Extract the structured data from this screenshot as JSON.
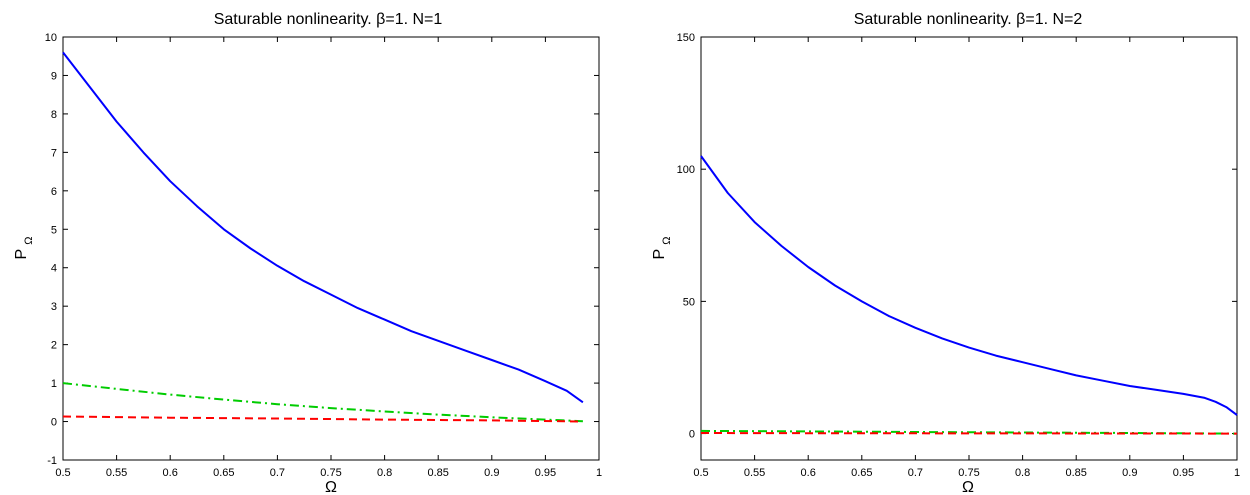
{
  "chart_data": [
    {
      "type": "line",
      "title": "Saturable nonlinearity. β=1. N=1",
      "xlabel": "Ω",
      "ylabel": "P",
      "ylabel_sub": "Ω",
      "xlim": [
        0.5,
        1
      ],
      "ylim": [
        -1,
        10
      ],
      "xticks": [
        "0.5",
        "0.55",
        "0.6",
        "0.65",
        "0.7",
        "0.75",
        "0.8",
        "0.85",
        "0.9",
        "0.95",
        "1"
      ],
      "yticks": [
        "-1",
        "0",
        "1",
        "2",
        "3",
        "4",
        "5",
        "6",
        "7",
        "8",
        "9",
        "10"
      ],
      "grid": false,
      "series": [
        {
          "style": "solid",
          "color": "#0000ff",
          "x": [
            0.5,
            0.525,
            0.55,
            0.575,
            0.6,
            0.625,
            0.65,
            0.675,
            0.7,
            0.725,
            0.75,
            0.775,
            0.8,
            0.825,
            0.85,
            0.875,
            0.9,
            0.925,
            0.95,
            0.97,
            0.985
          ],
          "y": [
            9.6,
            8.7,
            7.8,
            7.0,
            6.25,
            5.6,
            5.0,
            4.5,
            4.05,
            3.65,
            3.3,
            2.95,
            2.65,
            2.35,
            2.1,
            1.85,
            1.6,
            1.35,
            1.05,
            0.8,
            0.5
          ]
        },
        {
          "style": "dashdot",
          "color": "#00cc00",
          "x": [
            0.5,
            0.55,
            0.6,
            0.65,
            0.7,
            0.75,
            0.8,
            0.85,
            0.9,
            0.95,
            0.985
          ],
          "y": [
            1.0,
            0.85,
            0.7,
            0.57,
            0.45,
            0.35,
            0.26,
            0.18,
            0.11,
            0.05,
            0.01
          ]
        },
        {
          "style": "dashed",
          "color": "#ff0000",
          "x": [
            0.5,
            0.6,
            0.7,
            0.8,
            0.9,
            0.985
          ],
          "y": [
            0.13,
            0.1,
            0.08,
            0.05,
            0.03,
            0.0
          ]
        }
      ]
    },
    {
      "type": "line",
      "title": "Saturable nonlinearity. β=1. N=2",
      "xlabel": "Ω",
      "ylabel": "P",
      "ylabel_sub": "Ω",
      "xlim": [
        0.5,
        1
      ],
      "ylim": [
        -10,
        150
      ],
      "xticks": [
        "0.5",
        "0.55",
        "0.6",
        "0.65",
        "0.7",
        "0.75",
        "0.8",
        "0.85",
        "0.9",
        "0.95",
        "1"
      ],
      "yticks": [
        "0",
        "50",
        "100",
        "150"
      ],
      "ytick_values": [
        0,
        50,
        100,
        150
      ],
      "grid": false,
      "series": [
        {
          "style": "solid",
          "color": "#0000ff",
          "x": [
            0.5,
            0.525,
            0.55,
            0.575,
            0.6,
            0.625,
            0.65,
            0.675,
            0.7,
            0.725,
            0.75,
            0.775,
            0.8,
            0.825,
            0.85,
            0.875,
            0.9,
            0.925,
            0.95,
            0.97,
            0.98,
            0.99,
            1.0
          ],
          "y": [
            105,
            91,
            80,
            71,
            63,
            56,
            50,
            44.5,
            40,
            36,
            32.5,
            29.5,
            27,
            24.5,
            22,
            20,
            18,
            16.5,
            15,
            13.5,
            12,
            10,
            7
          ]
        },
        {
          "style": "dashdot",
          "color": "#00cc00",
          "x": [
            0.5,
            0.6,
            0.7,
            0.8,
            0.9,
            1.0
          ],
          "y": [
            1.0,
            0.8,
            0.6,
            0.4,
            0.2,
            0.0
          ]
        },
        {
          "style": "dashed",
          "color": "#ff0000",
          "x": [
            0.5,
            0.6,
            0.7,
            0.8,
            0.9,
            1.0
          ],
          "y": [
            0.2,
            0.15,
            0.1,
            0.07,
            0.04,
            0.0
          ]
        }
      ]
    }
  ]
}
